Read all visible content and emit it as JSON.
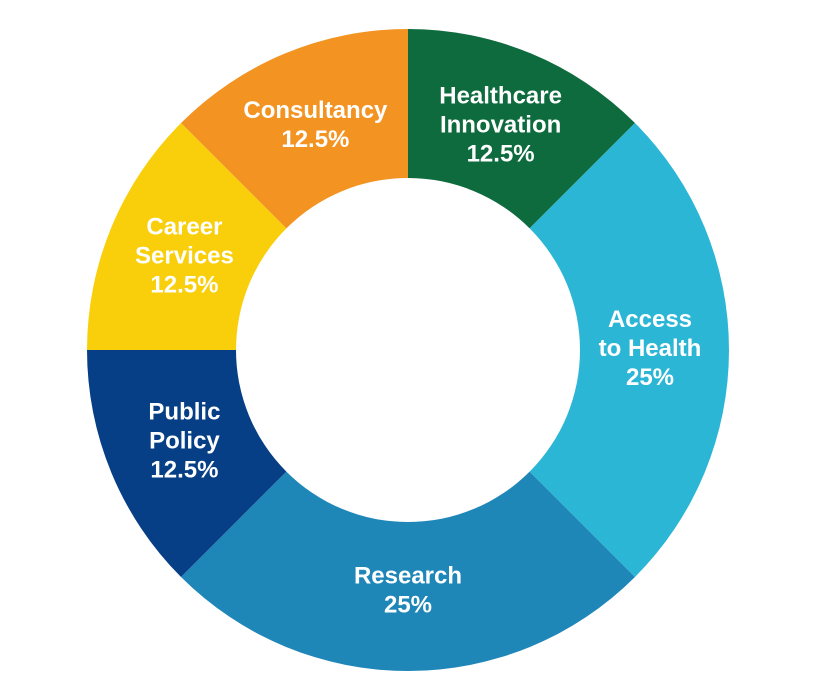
{
  "chart_data": {
    "type": "donut",
    "categories": [
      [
        "Healthcare",
        "Innovation"
      ],
      [
        "Access",
        "to Health"
      ],
      [
        "Research"
      ],
      [
        "Public",
        "Policy"
      ],
      [
        "Career",
        "Services"
      ],
      [
        "Consultancy"
      ]
    ],
    "values": [
      12.5,
      25,
      25,
      12.5,
      12.5,
      12.5
    ],
    "value_labels": [
      "12.5%",
      "25%",
      "25%",
      "12.5%",
      "12.5%",
      "12.5%"
    ],
    "colors": [
      "#0e6b3e",
      "#2cb6d6",
      "#1f87b8",
      "#063f86",
      "#f8cf0a",
      "#f39321"
    ]
  }
}
